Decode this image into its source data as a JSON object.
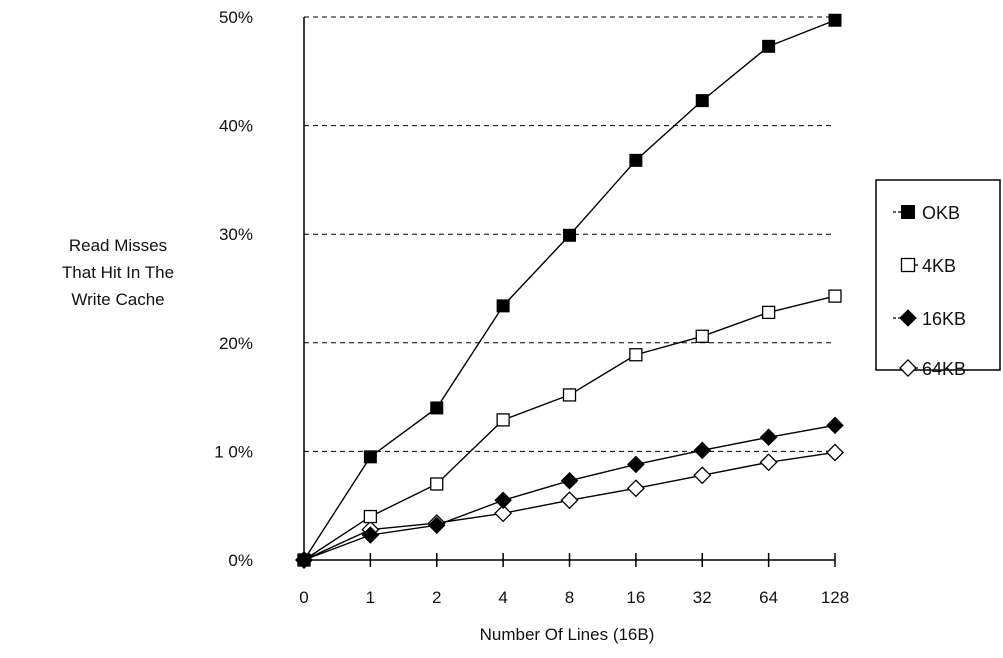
{
  "chart_data": {
    "type": "line",
    "title": "",
    "xlabel": "Number Of Lines (16B)",
    "ylabel_lines": [
      "Read Misses",
      "That Hit In The",
      "Write Cache"
    ],
    "categories": [
      "0",
      "1",
      "2",
      "4",
      "8",
      "16",
      "32",
      "64",
      "128"
    ],
    "y_ticks": [
      {
        "value": 0,
        "label": "0%"
      },
      {
        "value": 10,
        "label": "1 0%"
      },
      {
        "value": 20,
        "label": "20%"
      },
      {
        "value": 30,
        "label": "30%"
      },
      {
        "value": 40,
        "label": "40%"
      },
      {
        "value": 50,
        "label": "50%"
      }
    ],
    "ylim": [
      0,
      50
    ],
    "grid": true,
    "legend_position": "right",
    "series": [
      {
        "name": "OKB",
        "marker": "square-filled",
        "values": [
          0,
          9.5,
          14,
          23.4,
          29.9,
          36.8,
          42.3,
          47.3,
          49.7
        ]
      },
      {
        "name": "4KB",
        "marker": "square-open",
        "values": [
          0,
          4,
          7,
          12.9,
          15.2,
          18.9,
          20.6,
          22.8,
          24.3
        ]
      },
      {
        "name": "16KB",
        "marker": "diamond-filled",
        "values": [
          0,
          2.3,
          3.2,
          5.5,
          7.3,
          8.8,
          10.1,
          11.3,
          12.4
        ]
      },
      {
        "name": "64KB",
        "marker": "diamond-open",
        "values": [
          0,
          2.8,
          3.4,
          4.3,
          5.5,
          6.6,
          7.8,
          9.0,
          9.9
        ]
      }
    ]
  }
}
